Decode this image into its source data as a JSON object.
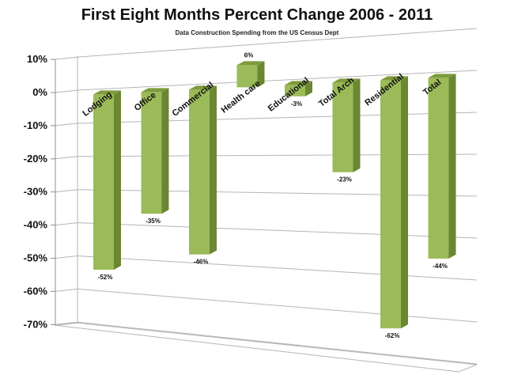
{
  "chart_data": {
    "type": "bar",
    "title": "First Eight Months Percent Change 2006 - 2011",
    "subtitle": "Data Construction Spending from the US Census Dept",
    "categories": [
      "Lodging",
      "Office",
      "Commercial",
      "Health care",
      "Educational",
      "Total Arch",
      "Residential",
      "Total"
    ],
    "values": [
      -52,
      -35,
      -46,
      6,
      -3,
      -23,
      -62,
      -44
    ],
    "data_labels": [
      "-52%",
      "-35%",
      "-46%",
      "6%",
      "-3%",
      "-23%",
      "-62%",
      "-44%"
    ],
    "yticks": [
      "10%",
      "0%",
      "-10%",
      "-20%",
      "-30%",
      "-40%",
      "-50%",
      "-60%",
      "-70%"
    ],
    "ylim": [
      -70,
      10
    ],
    "grid": true,
    "bar_color": "#9bbb59",
    "bar_top_color": "#7e9c3c",
    "bar_side_color": "#6b8732"
  }
}
